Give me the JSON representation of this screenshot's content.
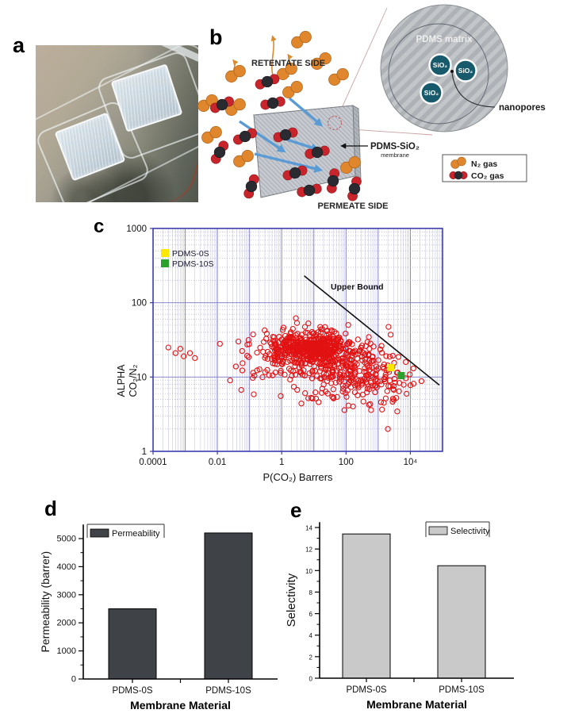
{
  "figure": {
    "panel_labels": {
      "a": "a",
      "b": "b",
      "c": "c",
      "d": "d",
      "e": "e"
    }
  },
  "panel_b": {
    "retentate_label": "RETENTATE SIDE",
    "permeate_label": "PERMEATE SIDE",
    "membrane_name": "PDMS-SiO₂",
    "membrane_sub": "membrane",
    "matrix_label": "PDMS matrix",
    "nanopores_label": "nanopores",
    "sio2_label": "SiO₂",
    "legend": {
      "n2": "N₂ gas",
      "co2": "CO₂ gas"
    },
    "colors": {
      "n2": "#E0872E",
      "co2_oxygen": "#C8242B",
      "co2_carbon": "#2A2A31",
      "flow_arrow": "#5B9BD5",
      "retentate_arrow": "#D98C2F",
      "membrane_fill": "#C6CAD0",
      "matrix_fill": "#BFC2C5",
      "sio2_fill": "#175A6B"
    },
    "n2_molecules": [
      [
        122,
        50
      ],
      [
        147,
        77
      ],
      [
        104,
        90
      ],
      [
        39,
        93
      ],
      [
        169,
        97
      ],
      [
        111,
        113
      ],
      [
        39,
        135
      ],
      [
        4,
        130
      ],
      [
        9,
        170
      ],
      [
        49,
        200
      ],
      [
        184,
        208
      ]
    ],
    "co2_molecules": [
      [
        79,
        103,
        -20
      ],
      [
        22,
        132,
        -25
      ],
      [
        86,
        130,
        -12
      ],
      [
        51,
        172,
        -25
      ],
      [
        19,
        192,
        -60
      ],
      [
        102,
        170,
        -18
      ],
      [
        142,
        192,
        -12
      ],
      [
        114,
        218,
        -18
      ],
      [
        59,
        235,
        -70
      ],
      [
        132,
        240,
        -12
      ],
      [
        162,
        228,
        -80
      ],
      [
        189,
        238,
        -75
      ]
    ],
    "flow_arrows": [
      [
        107,
        124,
        146,
        157
      ],
      [
        44,
        153,
        99,
        190
      ],
      [
        63,
        194,
        145,
        214
      ],
      [
        104,
        176,
        141,
        188
      ]
    ],
    "retentate_arrows": [
      [
        37,
        100,
        72
      ],
      [
        86,
        95,
        42
      ],
      [
        106,
        97,
        65
      ]
    ]
  },
  "chart_data": [
    {
      "type": "scatter",
      "xlabel": "P(CO₂) Barrers",
      "ylabel_line1": "ALPHA",
      "ylabel_line2": "CO₂/N₂",
      "xlog": true,
      "ylog": true,
      "xlim": [
        0.0001,
        100000
      ],
      "ylim": [
        1,
        1000
      ],
      "xticks": [
        [
          -4,
          "0.0001"
        ],
        [
          -2,
          "0.01"
        ],
        [
          0,
          "1"
        ],
        [
          2,
          "100"
        ],
        [
          4,
          "10⁴"
        ]
      ],
      "yticks": [
        [
          0,
          "1"
        ],
        [
          1,
          "10"
        ],
        [
          2,
          "100"
        ],
        [
          3,
          "1000"
        ]
      ],
      "grid": true,
      "grid_major_color": "#7A7AC4",
      "grid_minor_color": "#C0C0E6",
      "border_color": "#3B3BB0",
      "marker_color": "#E21212",
      "legend": [
        {
          "label": "PDMS-0S",
          "color": "#FFE800"
        },
        {
          "label": "PDMS-10S",
          "color": "#2CA02C"
        }
      ],
      "highlight_points": [
        {
          "label": "PDMS-0S",
          "x": 2500,
          "y": 13.4,
          "color": "#FFE800"
        },
        {
          "label": "PDMS-10S",
          "x": 5200,
          "y": 10.45,
          "color": "#2CA02C"
        }
      ],
      "upper_bound": {
        "label": "Upper Bound",
        "line": [
          [
            5,
            230
          ],
          [
            80000,
            7.8
          ]
        ],
        "color": "#111111"
      },
      "literature_cloud": {
        "marker": "open-circle",
        "seed": 7,
        "clusters": [
          {
            "n": 420,
            "logP_mean": 0.95,
            "logP_sd": 0.55,
            "logA_mean": 1.4,
            "logA_sd": 0.1
          },
          {
            "n": 240,
            "logP_mean": 0.85,
            "logP_sd": 1.05,
            "logA_mean": 1.28,
            "logA_sd": 0.18
          },
          {
            "n": 130,
            "logP_mean": 2.15,
            "logP_sd": 0.65,
            "logA_mean": 1.1,
            "logA_sd": 0.17
          },
          {
            "n": 55,
            "logP_mean": 3.25,
            "logP_sd": 0.45,
            "logA_mean": 0.93,
            "logA_sd": 0.13
          },
          {
            "n": 28,
            "logP_mean": 1.6,
            "logP_sd": 0.95,
            "logA_mean": 0.74,
            "logA_sd": 0.1
          }
        ],
        "outlier_points": [
          [
            0.0005,
            21
          ],
          [
            0.0009,
            19
          ],
          [
            0.0014,
            21
          ],
          [
            0.002,
            18
          ],
          [
            0.0007,
            24
          ],
          [
            0.0003,
            25
          ],
          [
            0.012,
            28
          ],
          [
            0.045,
            30
          ],
          [
            0.025,
            9
          ],
          [
            2000,
            2
          ],
          [
            600,
            3.6
          ],
          [
            1500,
            4.5
          ]
        ]
      }
    },
    {
      "type": "bar",
      "categories": [
        "PDMS-0S",
        "PDMS-10S"
      ],
      "values": [
        2500,
        5200
      ],
      "ylabel": "Permeability (barrer)",
      "xlabel": "Membrane Material",
      "legend_label": "Permeability",
      "bar_color": "#3F4246",
      "ylim": [
        0,
        5500
      ],
      "yticks": [
        0,
        1000,
        2000,
        3000,
        4000,
        5000
      ],
      "ytick_minor_step": 500
    },
    {
      "type": "bar",
      "categories": [
        "PDMS-0S",
        "PDMS-10S"
      ],
      "values": [
        13.4,
        10.45
      ],
      "ylabel": "Selectivity",
      "xlabel": "Membrane Material",
      "legend_label": "Selectivity",
      "bar_color": "#C9C9C9",
      "ylim": [
        0,
        14.5
      ],
      "yticks": [
        0,
        2,
        4,
        6,
        8,
        10,
        12,
        14
      ],
      "ytick_minor_step": 1
    }
  ]
}
